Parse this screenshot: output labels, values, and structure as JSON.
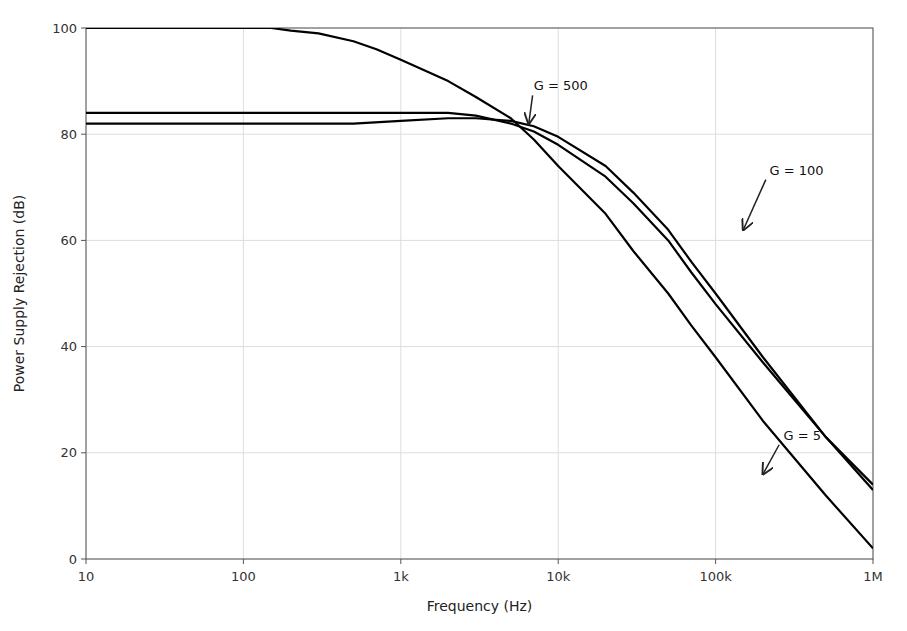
{
  "chart_data": {
    "type": "line",
    "x_label": "Frequency (Hz)",
    "y_label": "Power Supply Rejection (dB)",
    "log": "x",
    "grid": true,
    "xlim": [
      10,
      1000000
    ],
    "ylim": [
      0,
      100
    ],
    "xticks": [
      10,
      100,
      {
        "value": 1000,
        "label": "1k"
      },
      {
        "value": 10000,
        "label": "10k"
      },
      {
        "value": 100000,
        "label": "100k"
      },
      {
        "value": 1000000,
        "label": "1M"
      }
    ],
    "yticks": [
      0,
      20,
      40,
      60,
      80,
      100
    ],
    "series": [
      {
        "color": "#000000",
        "x": [
          10,
          20,
          30,
          50,
          70,
          100,
          150,
          200,
          300,
          500,
          700,
          1000,
          2000,
          3000,
          5000,
          7000,
          10000,
          20000,
          30000,
          50000,
          70000,
          100000,
          200000,
          500000,
          1000000
        ],
        "values": [
          100,
          100,
          100,
          100,
          100,
          100,
          100,
          99.5,
          99,
          97.5,
          96,
          94,
          90,
          87,
          83,
          79,
          74,
          65,
          58,
          50,
          44,
          38,
          26,
          12,
          2
        ]
      },
      {
        "color": "#000000",
        "x": [
          10,
          100,
          500,
          1000,
          2000,
          3000,
          5000,
          7000,
          10000,
          20000,
          30000,
          50000,
          70000,
          100000,
          200000,
          500000,
          1000000
        ],
        "values": [
          84,
          84,
          84,
          84,
          84,
          83.5,
          82,
          80.5,
          78,
          72,
          67,
          60,
          54,
          48,
          37,
          23,
          14
        ]
      },
      {
        "color": "#000000",
        "x": [
          10,
          100,
          500,
          1000,
          2000,
          3000,
          5000,
          7000,
          10000,
          20000,
          30000,
          50000,
          70000,
          100000,
          200000,
          500000,
          1000000
        ],
        "values": [
          82,
          82,
          82,
          82.5,
          83,
          83,
          82.5,
          81.5,
          79.5,
          74,
          69,
          62,
          56,
          50,
          38,
          23,
          13
        ]
      }
    ],
    "annotations": [
      {
        "text": "G = 500",
        "x": 7000,
        "y": 89,
        "arrow_x": 6500,
        "arrow_y": 82
      },
      {
        "text": "G = 100",
        "x": 220000,
        "y": 73,
        "arrow_x": 150000,
        "arrow_y": 62
      },
      {
        "text": "G = 5",
        "x": 270000,
        "y": 23,
        "arrow_x": 200000,
        "arrow_y": 16
      }
    ]
  }
}
